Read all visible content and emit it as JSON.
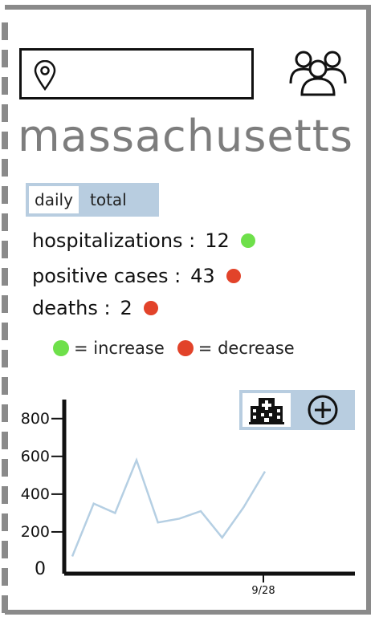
{
  "search": {
    "value": "",
    "placeholder": ""
  },
  "header": {
    "title": "massachusetts"
  },
  "tabs": [
    {
      "label": "daily",
      "active": true
    },
    {
      "label": "total",
      "active": false
    }
  ],
  "stats": [
    {
      "label": "hospitalizations :",
      "value": "12",
      "status": "increase"
    },
    {
      "label": "positive cases :",
      "value": "43",
      "status": "decrease"
    },
    {
      "label": "deaths :",
      "value": "2",
      "status": "decrease"
    }
  ],
  "legend": {
    "increase": "= increase",
    "decrease": "= decrease"
  },
  "colors": {
    "increase": "#6ee04a",
    "decrease": "#e2432a",
    "accent": "#b8cde0",
    "title": "#7d7d7d",
    "line": "#b5cfe3"
  },
  "icons": {
    "location": "map-pin-icon",
    "people": "group-icon",
    "hospital": "hospital-icon",
    "add": "plus-circle-icon"
  },
  "chart_data": {
    "type": "line",
    "x_tick_labels": [
      "9/28"
    ],
    "y_tick_labels": [
      "0",
      "200",
      "400",
      "600",
      "800"
    ],
    "ylim": [
      0,
      850
    ],
    "series": [
      {
        "values": [
          70,
          350,
          300,
          580,
          250,
          270,
          310,
          170,
          330,
          520
        ]
      }
    ]
  }
}
